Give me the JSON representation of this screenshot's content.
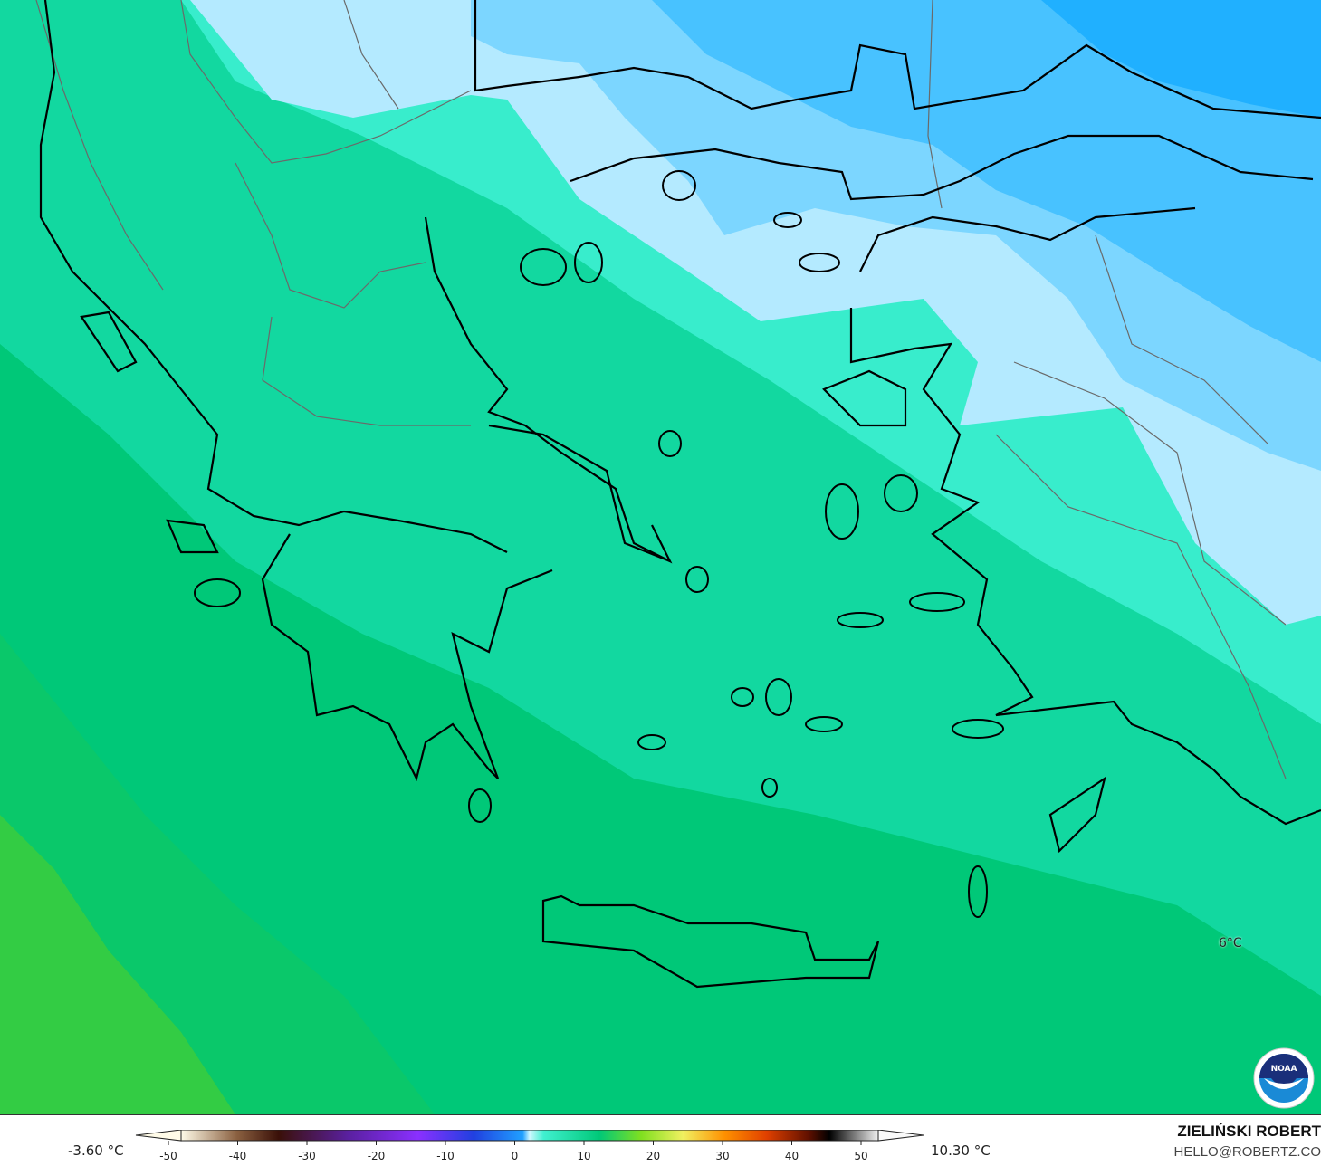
{
  "map": {
    "variable_unit": "°C",
    "contour_label": "6°C",
    "colors": {
      "warm_green": "#33cc44",
      "green": "#00c878",
      "teal": "#1ad9a8",
      "aqua": "#40f0d0",
      "pale_blue": "#b4eaff",
      "light_blue": "#7cd6ff",
      "blue": "#40bfff",
      "deep_blue": "#20b0ff",
      "coastline": "#000000",
      "borders": "#6a6a6a"
    },
    "logo": "NOAA"
  },
  "legend": {
    "min_label": "-3.60 °C",
    "max_label": "10.30 °C",
    "ticks": [
      "-50",
      "-40",
      "-30",
      "-20",
      "-10",
      "0",
      "10",
      "20",
      "30",
      "40",
      "50"
    ]
  },
  "credits": {
    "author": "ZIELIŃSKI ROBERT",
    "email": "HELLO@ROBERTZ.CO"
  }
}
